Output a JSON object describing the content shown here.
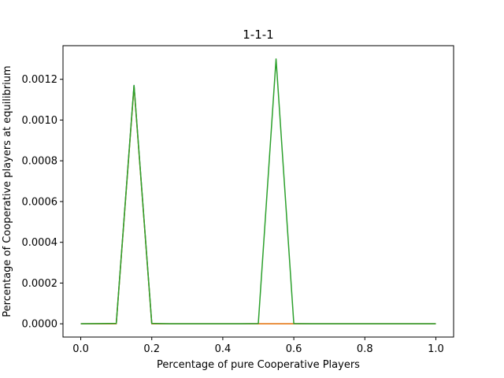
{
  "chart_data": {
    "type": "line",
    "title": "1-1-1",
    "xlabel": "Percentage of pure Cooperative Players",
    "ylabel": "Percentage of Cooperative players at equilibrium",
    "xlim": [
      -0.05,
      1.05
    ],
    "ylim": [
      -6.5e-05,
      0.001365
    ],
    "xticks": [
      0.0,
      0.2,
      0.4,
      0.6,
      0.8,
      1.0
    ],
    "xtick_labels": [
      "0.0",
      "0.2",
      "0.4",
      "0.6",
      "0.8",
      "1.0"
    ],
    "yticks": [
      0.0,
      0.0002,
      0.0004,
      0.0006,
      0.0008,
      0.001,
      0.0012
    ],
    "ytick_labels": [
      "0.0000",
      "0.0002",
      "0.0004",
      "0.0006",
      "0.0008",
      "0.0010",
      "0.0012"
    ],
    "grid": false,
    "series": [
      {
        "color": "#1f77b4",
        "x": [
          0.0,
          0.1,
          0.15,
          0.2,
          0.25,
          0.3,
          0.35,
          0.4,
          0.45,
          0.5,
          0.55,
          0.6,
          0.65,
          0.7,
          0.75,
          0.8,
          0.85,
          0.9,
          0.95,
          1.0
        ],
        "y": [
          0,
          0,
          0.00117,
          0,
          0,
          0,
          0,
          0,
          0,
          0,
          0,
          0,
          0,
          0,
          0,
          0,
          0,
          0,
          0,
          0
        ]
      },
      {
        "color": "#ff7f0e",
        "x": [
          0.0,
          0.1,
          0.15,
          0.2,
          0.25,
          0.3,
          0.35,
          0.4,
          0.45,
          0.5,
          0.55,
          0.6,
          0.65,
          0.7,
          0.75,
          0.8,
          0.85,
          0.9,
          0.95,
          1.0
        ],
        "y": [
          0,
          0,
          0.001165,
          0,
          0,
          0,
          0,
          0,
          0,
          0,
          0,
          0,
          0,
          0,
          0,
          0,
          0,
          0,
          0,
          0
        ]
      },
      {
        "color": "#2ca02c",
        "x": [
          0.0,
          0.1,
          0.15,
          0.2,
          0.25,
          0.3,
          0.35,
          0.4,
          0.45,
          0.5,
          0.55,
          0.6,
          0.65,
          0.7,
          0.75,
          0.8,
          0.85,
          0.9,
          0.95,
          1.0
        ],
        "y": [
          0,
          2e-06,
          0.00117,
          2e-06,
          0,
          0,
          0,
          0,
          0,
          1e-06,
          0.0013,
          1e-06,
          0,
          0,
          0,
          0,
          0,
          0,
          0,
          0
        ]
      }
    ]
  }
}
